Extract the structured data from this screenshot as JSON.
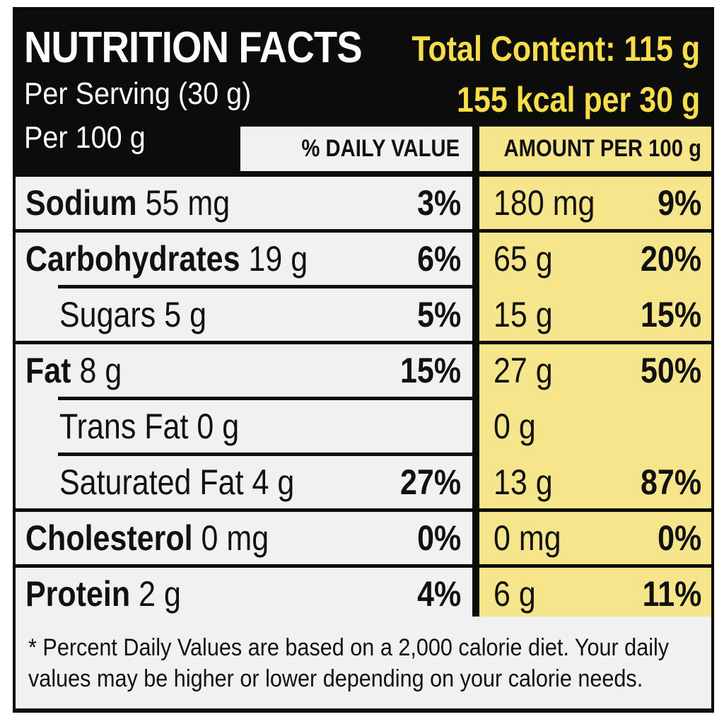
{
  "header": {
    "title": "NUTRITION FACTS",
    "per_serving": "Per Serving (30 g)",
    "per_100": "Per 100 g",
    "total_content": "Total Content: 115 g",
    "kcal": "155 kcal per 30 g"
  },
  "columns": {
    "daily_value": "% DAILY VALUE",
    "amount_per_100": "AMOUNT PER 100 g"
  },
  "rows": [
    {
      "name": "Sodium",
      "amount": "55 mg",
      "dv": "3%",
      "amount_100": "180 mg",
      "dv_100": "9%",
      "indent": false
    },
    {
      "name": "Carbohydrates",
      "amount": "19 g",
      "dv": "6%",
      "amount_100": "65 g",
      "dv_100": "20%",
      "indent": false
    },
    {
      "name": "Sugars",
      "amount": "5 g",
      "dv": "5%",
      "amount_100": "15 g",
      "dv_100": "15%",
      "indent": true
    },
    {
      "name": "Fat",
      "amount": "8 g",
      "dv": "15%",
      "amount_100": "27 g",
      "dv_100": "50%",
      "indent": false
    },
    {
      "name": "Trans Fat",
      "amount": "0 g",
      "dv": "",
      "amount_100": "0 g",
      "dv_100": "",
      "indent": true
    },
    {
      "name": "Saturated Fat",
      "amount": "4 g",
      "dv": "27%",
      "amount_100": "13 g",
      "dv_100": "87%",
      "indent": true
    },
    {
      "name": "Cholesterol",
      "amount": "0 mg",
      "dv": "0%",
      "amount_100": "0 mg",
      "dv_100": "0%",
      "indent": false
    },
    {
      "name": "Protein",
      "amount": "2 g",
      "dv": "4%",
      "amount_100": "6 g",
      "dv_100": "11%",
      "indent": false
    }
  ],
  "footnote": "* Percent Daily Values are based on a 2,000 calorie diet. Your daily values may be higher or lower depending on your calorie needs.",
  "colors": {
    "background": "#0c0c0c",
    "left_column": "#f1f1f1",
    "right_column": "#f7e58c",
    "header_accent": "#f7dd4a"
  }
}
